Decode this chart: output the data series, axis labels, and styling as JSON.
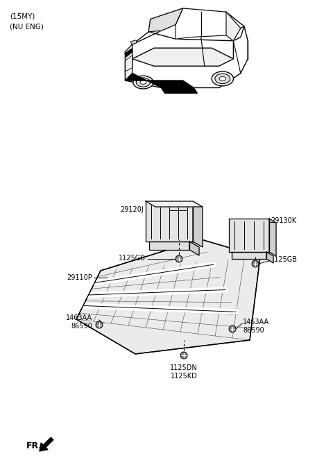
{
  "bg_color": "#ffffff",
  "text_color": "#000000",
  "line_color": "#000000",
  "title_lines": [
    "(15MY)",
    "(NU ENG)"
  ],
  "fr_label": "FR.",
  "label_fontsize": 7.0,
  "title_fontsize": 7.5
}
